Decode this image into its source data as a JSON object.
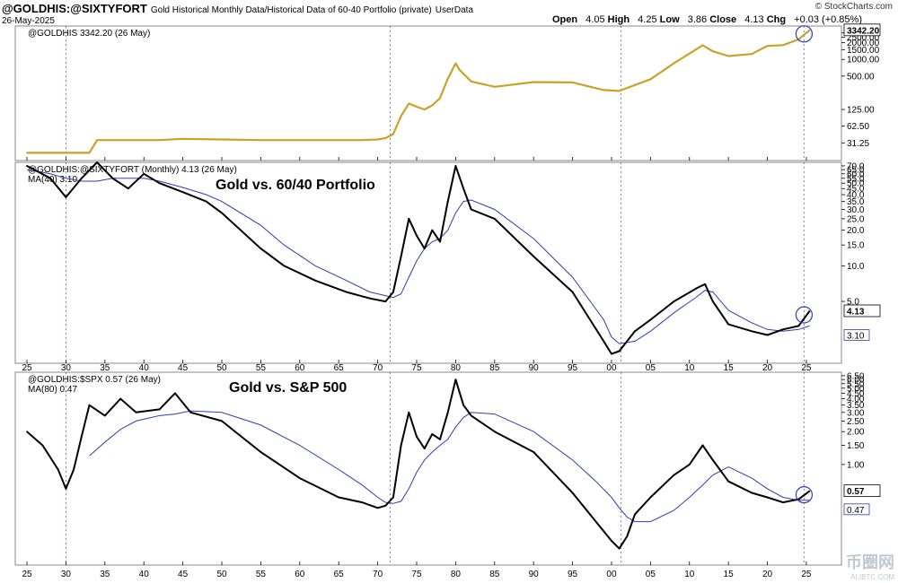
{
  "header": {
    "symbol": "@GOLDHIS:@SIXTYFORT",
    "subtitle": "Gold Historical Monthly Data/Historical Data of 60-40 Portfolio (private)",
    "tag": "UserData",
    "date": "26-May-2025",
    "brand": "© StockCharts.com",
    "open_label": "Open",
    "open": "4.05",
    "high_label": "High",
    "high": "4.25",
    "low_label": "Low",
    "low": "3.86",
    "close_label": "Close",
    "close": "4.13",
    "chg_label": "Chg",
    "chg": "+0.03 (+0.85%)"
  },
  "watermark": {
    "text": "币圈网",
    "url": "ALIBTC.COM"
  },
  "chart_data": [
    {
      "type": "line",
      "panel": "gold",
      "scale": "log",
      "legend": "@GOLDHIS 3342.20 (26 May)",
      "last_value_label": "3342.20",
      "colors": {
        "price": "#c9a227"
      },
      "y_ticks": [
        "3000.00",
        "2500.00",
        "2000.00",
        "1500.00",
        "1000.00",
        "500.00",
        "125.00",
        "62.50",
        "31.25"
      ],
      "y_tick_values": [
        3000,
        2500,
        2000,
        1500,
        1000,
        500,
        125,
        62.5,
        31.25
      ],
      "ylim": [
        15,
        4000
      ],
      "x": [
        1925,
        1933,
        1934,
        1942,
        1945,
        1950,
        1955,
        1968,
        1970,
        1971,
        1972,
        1973,
        1974,
        1975,
        1976,
        1977,
        1978,
        1979,
        1980,
        1980.5,
        1982,
        1985,
        1990,
        1995,
        1999,
        2001,
        2005,
        2008,
        2011.7,
        2013,
        2015,
        2018,
        2020,
        2022,
        2024,
        2025.4
      ],
      "values": [
        20.67,
        20.67,
        35,
        35,
        37,
        36,
        35,
        35,
        36,
        38,
        45,
        95,
        160,
        140,
        125,
        148,
        200,
        450,
        850,
        650,
        400,
        320,
        390,
        385,
        280,
        270,
        440,
        850,
        1800,
        1400,
        1150,
        1250,
        1750,
        1800,
        2300,
        3342.2
      ]
    },
    {
      "type": "line",
      "panel": "gold-vs-6040",
      "scale": "log",
      "title": "Gold vs. 60/40 Portfolio",
      "legend": "@GOLDHIS:@SIXTYFORT (Monthly) 4.13 (26 May)",
      "ma_legend": "MA(40) 3.10",
      "last_value_label": "4.13",
      "ma_value_label": "3.10",
      "colors": {
        "price": "#000000",
        "ma": "#2b3fb0"
      },
      "y_ticks": [
        "70.0",
        "65.0",
        "60.0",
        "55.0",
        "50.0",
        "45.0",
        "40.0",
        "35.0",
        "30.0",
        "25.0",
        "20.0",
        "15.0",
        "10.0",
        "5.0"
      ],
      "y_tick_values": [
        70,
        65,
        60,
        55,
        50,
        45,
        40,
        35,
        30,
        25,
        20,
        15,
        10,
        5
      ],
      "ylim": [
        1.5,
        75
      ],
      "x": [
        1925,
        1928,
        1930,
        1932,
        1934,
        1936,
        1938,
        1940,
        1942,
        1945,
        1948,
        1950,
        1955,
        1958,
        1962,
        1966,
        1969,
        1971,
        1972,
        1973,
        1974,
        1975,
        1976,
        1977,
        1978,
        1979,
        1980,
        1981,
        1982,
        1985,
        1990,
        1995,
        1999,
        2000,
        2001,
        2003,
        2005,
        2008,
        2011,
        2012,
        2013,
        2015,
        2018,
        2020,
        2022,
        2024,
        2025.4
      ],
      "values": [
        70,
        55,
        38,
        55,
        75,
        55,
        45,
        60,
        50,
        42,
        35,
        28,
        14,
        10,
        7.5,
        6,
        5.3,
        5,
        6,
        12,
        25,
        18,
        14,
        20,
        16,
        35,
        70,
        45,
        30,
        25,
        12,
        6,
        2.3,
        1.8,
        1.9,
        2.8,
        3.5,
        5,
        6.5,
        7,
        5,
        3.2,
        2.8,
        2.6,
        2.9,
        3.1,
        4.13
      ],
      "ma": [
        65,
        60,
        55,
        52,
        52,
        55,
        55,
        55,
        52,
        46,
        40,
        35,
        22,
        15,
        10,
        7.5,
        6,
        5.6,
        5.4,
        5.8,
        8,
        11,
        14,
        16,
        17,
        20,
        28,
        35,
        36,
        30,
        17,
        8,
        3.5,
        2.5,
        2.2,
        2.3,
        2.8,
        4,
        5.5,
        6.2,
        6,
        4.2,
        3.3,
        2.9,
        2.8,
        2.9,
        3.1
      ]
    },
    {
      "type": "line",
      "panel": "gold-vs-spx",
      "scale": "log",
      "title": "Gold vs. S&P 500",
      "legend": "@GOLDHIS:$SPX 0.57 (26 May)",
      "ma_legend": "MA(80) 0.47",
      "last_value_label": "0.57",
      "ma_value_label": "0.47",
      "colors": {
        "price": "#000000",
        "ma": "#2b3fb0"
      },
      "y_ticks": [
        "6.50",
        "6.00",
        "5.50",
        "5.00",
        "4.50",
        "4.00",
        "3.50",
        "3.00",
        "2.50",
        "2.00",
        "1.50",
        "1.00"
      ],
      "y_tick_values": [
        6.5,
        6,
        5.5,
        5,
        4.5,
        4,
        3.5,
        3,
        2.5,
        2,
        1.5,
        1
      ],
      "ylim": [
        0.12,
        7
      ],
      "x": [
        1925,
        1927,
        1929,
        1930,
        1931,
        1932,
        1933,
        1935,
        1937,
        1939,
        1942,
        1944,
        1946,
        1950,
        1955,
        1960,
        1965,
        1968,
        1970,
        1971,
        1972,
        1973,
        1974,
        1975,
        1976,
        1977,
        1978,
        1979,
        1980,
        1981,
        1982,
        1985,
        1990,
        1995,
        1998,
        2000,
        2001,
        2002,
        2003,
        2005,
        2008,
        2010,
        2011.7,
        2013,
        2015,
        2018,
        2020,
        2022,
        2024,
        2025.4
      ],
      "values": [
        2.0,
        1.5,
        0.9,
        0.6,
        0.9,
        1.8,
        3.5,
        2.8,
        4.0,
        3.0,
        3.2,
        4.5,
        3.0,
        2.5,
        1.3,
        0.75,
        0.5,
        0.45,
        0.4,
        0.42,
        0.5,
        1.5,
        3.0,
        1.8,
        1.4,
        1.9,
        1.7,
        3.0,
        6.0,
        3.5,
        2.8,
        2.0,
        1.3,
        0.55,
        0.3,
        0.2,
        0.17,
        0.22,
        0.35,
        0.5,
        0.8,
        1.0,
        1.5,
        1.1,
        0.7,
        0.55,
        0.5,
        0.45,
        0.48,
        0.57
      ],
      "ma": [
        null,
        null,
        null,
        null,
        null,
        null,
        1.2,
        1.6,
        2.1,
        2.5,
        2.8,
        2.9,
        3.1,
        3.0,
        2.3,
        1.5,
        0.9,
        0.65,
        0.5,
        0.45,
        0.44,
        0.46,
        0.6,
        0.85,
        1.1,
        1.3,
        1.5,
        1.7,
        2.2,
        2.7,
        3.0,
        2.9,
        2.0,
        1.1,
        0.7,
        0.5,
        0.4,
        0.33,
        0.3,
        0.3,
        0.38,
        0.5,
        0.65,
        0.8,
        0.95,
        0.75,
        0.6,
        0.5,
        0.47,
        0.47
      ]
    }
  ],
  "x_axis": {
    "tick_labels": [
      "25",
      "30",
      "35",
      "40",
      "45",
      "50",
      "55",
      "60",
      "65",
      "70",
      "75",
      "80",
      "85",
      "90",
      "95",
      "00",
      "05",
      "10",
      "15",
      "20",
      "25"
    ],
    "tick_years": [
      1925,
      1930,
      1935,
      1940,
      1945,
      1950,
      1955,
      1960,
      1965,
      1970,
      1975,
      1980,
      1985,
      1990,
      1995,
      2000,
      2005,
      2010,
      2015,
      2020,
      2025
    ],
    "xlim": [
      1923.5,
      2029.5
    ],
    "vertical_markers": [
      1930,
      1971.6,
      2001.2,
      2024.7
    ]
  }
}
